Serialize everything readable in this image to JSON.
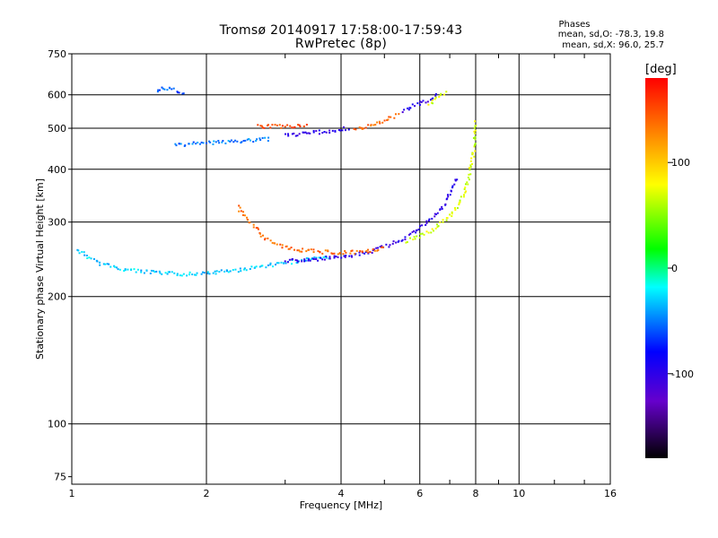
{
  "chart_data": {
    "type": "scatter",
    "title": "Tromsø 20140917 17:58:00-17:59:43",
    "subtitle": "RwPretec (8p)",
    "xlabel": "Frequency [MHz]",
    "ylabel": "Stationary phase Virtual Height [km]",
    "x_scale": "log",
    "y_scale": "log",
    "xlim": [
      1,
      16
    ],
    "ylim": [
      72,
      750
    ],
    "x_ticks": [
      1,
      2,
      4,
      6,
      8,
      10,
      16
    ],
    "x_tick_labels": [
      "1",
      "2",
      "4",
      "6",
      "8",
      "10",
      "16"
    ],
    "y_ticks": [
      75,
      100,
      200,
      300,
      400,
      500,
      600,
      750
    ],
    "y_tick_labels": [
      "75",
      "100",
      "200",
      "300",
      "400",
      "500",
      "600",
      "750"
    ],
    "grid": true,
    "colorbar": {
      "label": "[deg]",
      "range": [
        -180,
        180
      ],
      "ticks": [
        100,
        0,
        -100
      ],
      "tick_labels": [
        "100",
        "0",
        "-100"
      ],
      "colors": [
        "#000000",
        "#6600cc",
        "#0000ff",
        "#00ffff",
        "#00ff00",
        "#ffff00",
        "#ff8000",
        "#ff0000"
      ]
    },
    "stats": {
      "header": "Phases",
      "o_mode": "mean, sd,O: -78.3, 19.8",
      "x_mode": "mean, sd,X:  96.0, 25.7"
    },
    "traces": [
      {
        "x": [
          1.03,
          1.08,
          1.15,
          1.3,
          1.45,
          1.6,
          1.8,
          2.0,
          2.3,
          2.6,
          3.0,
          3.4,
          3.8
        ],
        "y": [
          258,
          250,
          240,
          232,
          229,
          227,
          226,
          227,
          230,
          235,
          240,
          245,
          248
        ],
        "phase": -30
      },
      {
        "x": [
          3.0,
          3.5,
          4.0,
          4.5,
          5.0,
          5.5,
          6.0,
          6.4,
          6.8,
          7.0,
          7.3
        ],
        "y": [
          242,
          245,
          248,
          253,
          262,
          274,
          290,
          305,
          330,
          350,
          385
        ],
        "phase": -100
      },
      {
        "x": [
          2.35,
          2.5,
          2.7,
          3.0,
          3.3,
          3.6,
          4.0,
          4.4,
          4.8,
          5.0
        ],
        "y": [
          325,
          300,
          275,
          262,
          257,
          255,
          254,
          255,
          258,
          262
        ],
        "phase": 140
      },
      {
        "x": [
          5.6,
          6.0,
          6.5,
          7.0,
          7.4,
          7.7,
          7.9,
          8.0
        ],
        "y": [
          270,
          278,
          290,
          310,
          335,
          375,
          430,
          520
        ],
        "phase": 70
      },
      {
        "x": [
          1.7,
          1.8,
          2.0,
          2.3,
          2.6,
          2.8
        ],
        "y": [
          460,
          458,
          462,
          465,
          470,
          472
        ],
        "phase": -50
      },
      {
        "x": [
          3.0,
          3.3,
          3.6,
          3.9,
          4.2
        ],
        "y": [
          480,
          485,
          490,
          495,
          500
        ],
        "phase": -100
      },
      {
        "x": [
          4.3,
          4.6,
          5.0,
          5.4
        ],
        "y": [
          495,
          505,
          520,
          540
        ],
        "phase": 140
      },
      {
        "x": [
          5.5,
          5.8,
          6.2,
          6.6
        ],
        "y": [
          550,
          565,
          580,
          600
        ],
        "phase": -100
      },
      {
        "x": [
          6.3,
          6.6,
          6.9
        ],
        "y": [
          570,
          590,
          610
        ],
        "phase": 70
      },
      {
        "x": [
          1.55,
          1.6,
          1.7,
          1.8
        ],
        "y": [
          610,
          625,
          615,
          600
        ],
        "phase": -60
      },
      {
        "x": [
          2.6,
          3.0,
          3.4
        ],
        "y": [
          505,
          505,
          505
        ],
        "phase": 150
      }
    ]
  }
}
